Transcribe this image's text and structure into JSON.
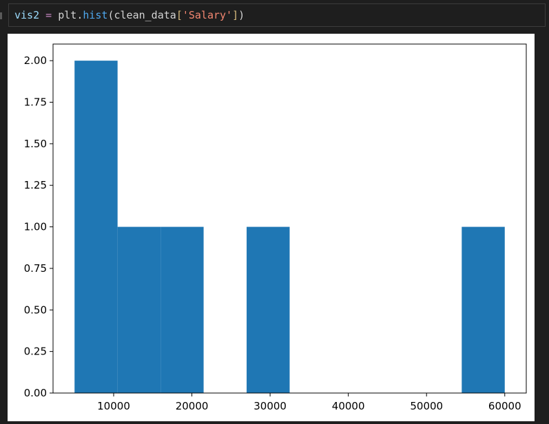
{
  "code": {
    "var": "vis2",
    "op": " = ",
    "obj": "plt",
    "dot": ".",
    "func": "hist",
    "paren_open": "(",
    "arg": "clean_data",
    "bracket_open": "[",
    "key": "'Salary'",
    "bracket_close": "]",
    "paren_close": ")"
  },
  "colors": {
    "bar": "#1f77b4",
    "code_var": "#9cdcfe",
    "code_op": "#d4d4d4",
    "code_func": "#4fa9f0",
    "code_string": "#f48771",
    "code_bracket": "#d7ba7d"
  },
  "chart_data": {
    "type": "bar",
    "title": "",
    "xlabel": "",
    "ylabel": "",
    "xlim": [
      2250,
      62750
    ],
    "ylim": [
      0,
      2.1
    ],
    "grid": false,
    "bins": [
      {
        "x0": 5000,
        "x1": 10500,
        "count": 2
      },
      {
        "x0": 10500,
        "x1": 16000,
        "count": 1
      },
      {
        "x0": 16000,
        "x1": 21500,
        "count": 1
      },
      {
        "x0": 21500,
        "x1": 27000,
        "count": 0
      },
      {
        "x0": 27000,
        "x1": 32500,
        "count": 1
      },
      {
        "x0": 32500,
        "x1": 38000,
        "count": 0
      },
      {
        "x0": 38000,
        "x1": 43500,
        "count": 0
      },
      {
        "x0": 43500,
        "x1": 49000,
        "count": 0
      },
      {
        "x0": 49000,
        "x1": 54500,
        "count": 0
      },
      {
        "x0": 54500,
        "x1": 60000,
        "count": 1
      }
    ],
    "xticks": [
      10000,
      20000,
      30000,
      40000,
      50000,
      60000
    ],
    "xtick_labels": [
      "10000",
      "20000",
      "30000",
      "40000",
      "50000",
      "60000"
    ],
    "yticks": [
      0,
      0.25,
      0.5,
      0.75,
      1.0,
      1.25,
      1.5,
      1.75,
      2.0
    ],
    "ytick_labels": [
      "0.00",
      "0.25",
      "0.50",
      "0.75",
      "1.00",
      "1.25",
      "1.50",
      "1.75",
      "2.00"
    ]
  }
}
